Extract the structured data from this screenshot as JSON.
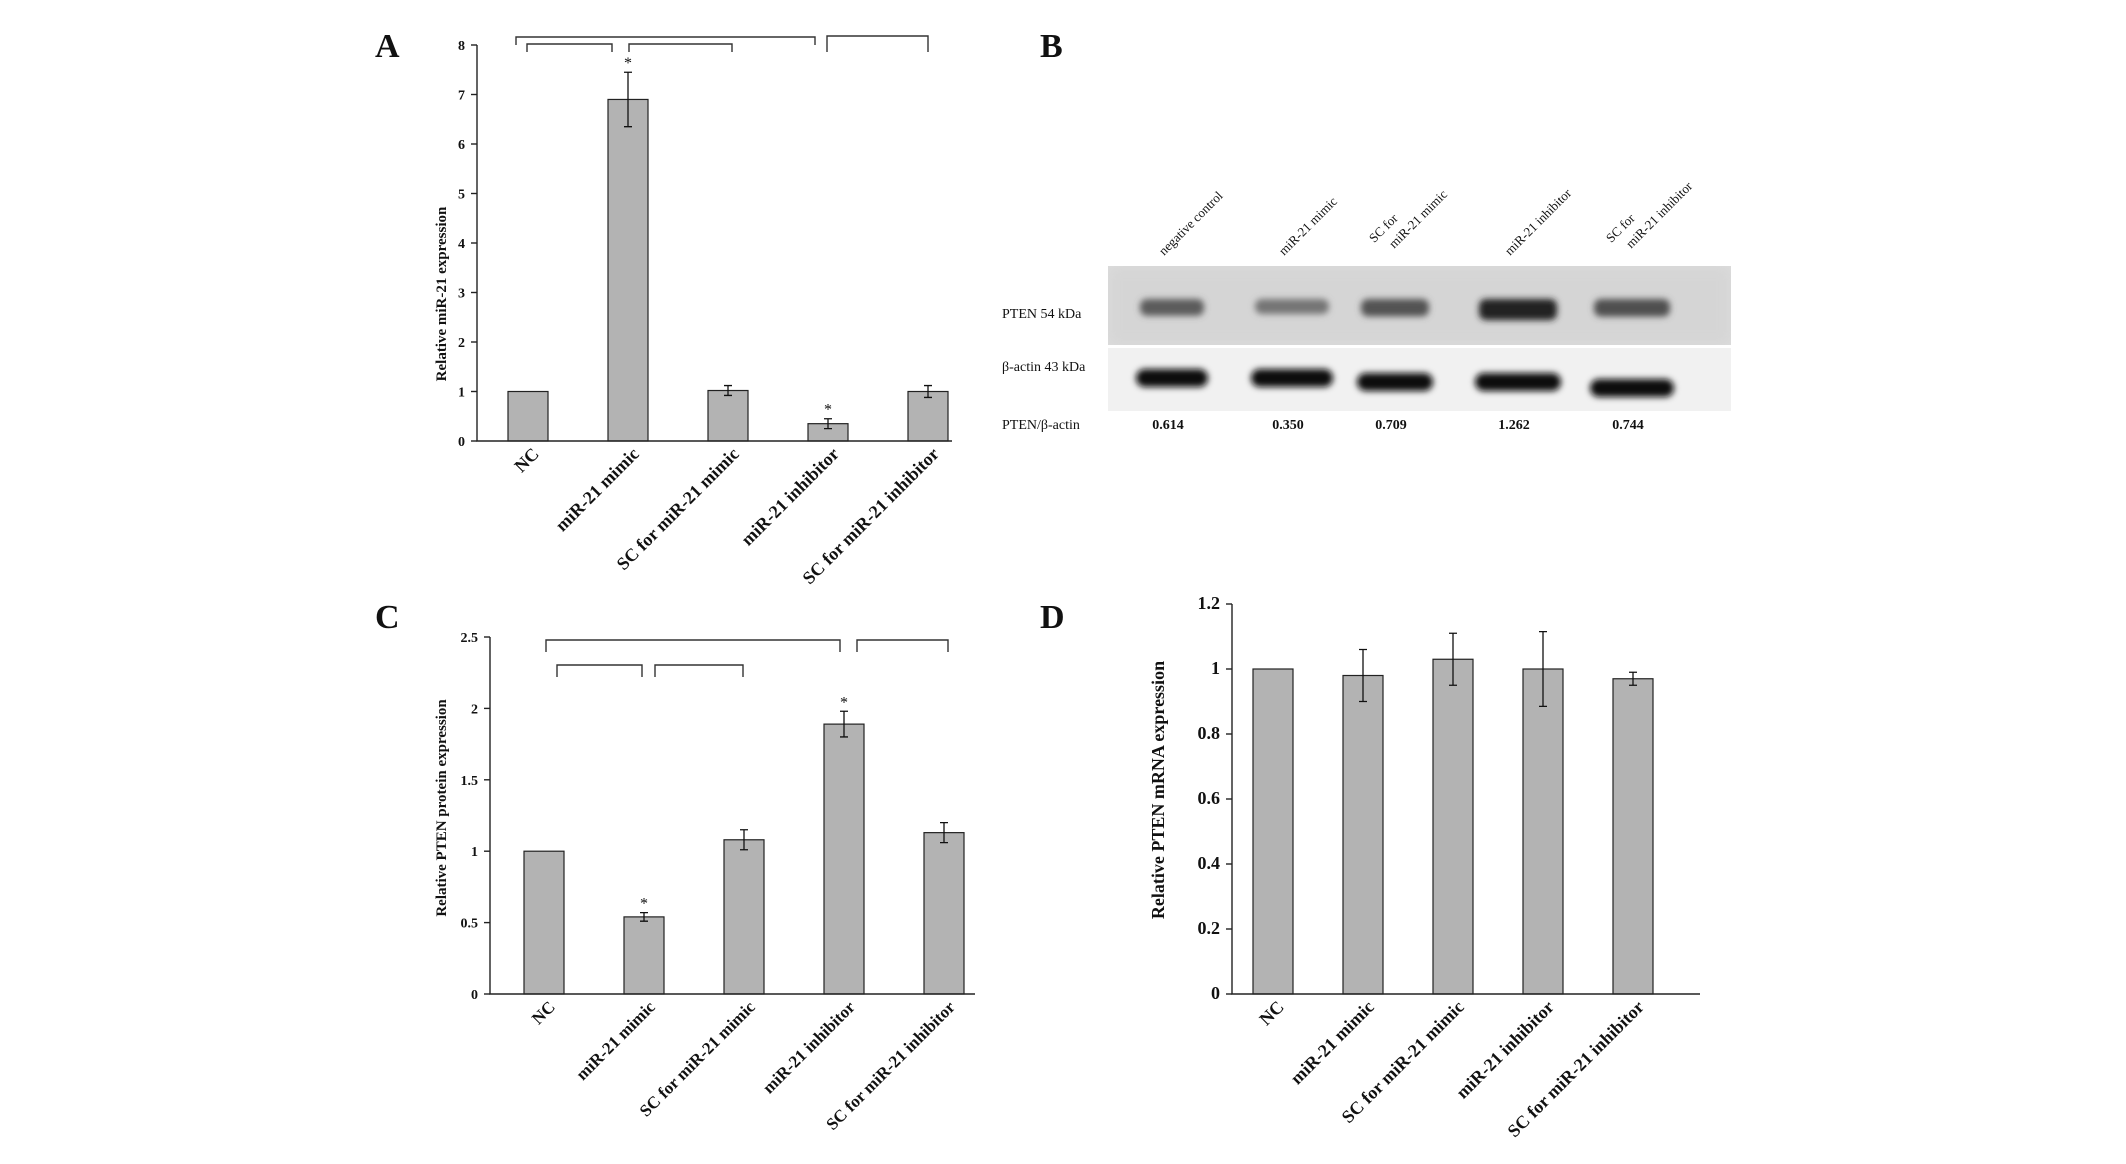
{
  "chart_data": [
    {
      "panel": "A",
      "type": "bar",
      "categories": [
        "NC",
        "miR-21 mimic",
        "SC for miR-21 mimic",
        "miR-21 inhibitor",
        "SC for miR-21 inhibitor"
      ],
      "values": [
        1.0,
        6.9,
        1.02,
        0.35,
        1.0
      ],
      "errors": [
        0,
        0.55,
        0.1,
        0.1,
        0.12
      ],
      "significance": [
        "",
        "*",
        "",
        "*",
        ""
      ],
      "ylabel": "Relative miR-21 expression",
      "ylim": [
        0,
        8
      ],
      "yticks": [
        "0",
        "1",
        "2",
        "3",
        "4",
        "5",
        "6",
        "7",
        "8"
      ],
      "grid": false
    },
    {
      "panel": "B",
      "type": "table",
      "lanes": [
        "negative control",
        "miR-21 mimic",
        "SC for miR-21 mimic",
        "miR-21 inhibitor",
        "SC for miR-21 inhibitor"
      ],
      "row_labels": [
        "PTEN 54 kDa",
        "β-actin 43 kDa",
        "PTEN/β-actin"
      ],
      "ratios": [
        "0.614",
        "0.350",
        "0.709",
        "1.262",
        "0.744"
      ]
    },
    {
      "panel": "C",
      "type": "bar",
      "categories": [
        "NC",
        "miR-21 mimic",
        "SC for miR-21 mimic",
        "miR-21 inhibitor",
        "SC for miR-21 inhibitor"
      ],
      "values": [
        1.0,
        0.54,
        1.08,
        1.89,
        1.13
      ],
      "errors": [
        0,
        0.03,
        0.07,
        0.09,
        0.07
      ],
      "significance": [
        "",
        "*",
        "",
        "*",
        ""
      ],
      "ylabel": "Relative PTEN protein expression",
      "ylim": [
        0,
        2.5
      ],
      "yticks": [
        "0",
        "0.5",
        "1",
        "1.5",
        "2",
        "2.5"
      ],
      "grid": false
    },
    {
      "panel": "D",
      "type": "bar",
      "categories": [
        "NC",
        "miR-21 mimic",
        "SC for miR-21 mimic",
        "miR-21 inhibitor",
        "SC for miR-21 inhibitor"
      ],
      "values": [
        1.0,
        0.98,
        1.03,
        1.0,
        0.97
      ],
      "errors": [
        0,
        0.08,
        0.08,
        0.115,
        0.02
      ],
      "significance": [
        "",
        "",
        "",
        "",
        ""
      ],
      "ylabel": "Relative PTEN mRNA expression",
      "ylim": [
        0,
        1.2
      ],
      "yticks": [
        "0",
        "0.2",
        "0.4",
        "0.6",
        "0.8",
        "1",
        "1.2"
      ],
      "grid": false
    }
  ]
}
